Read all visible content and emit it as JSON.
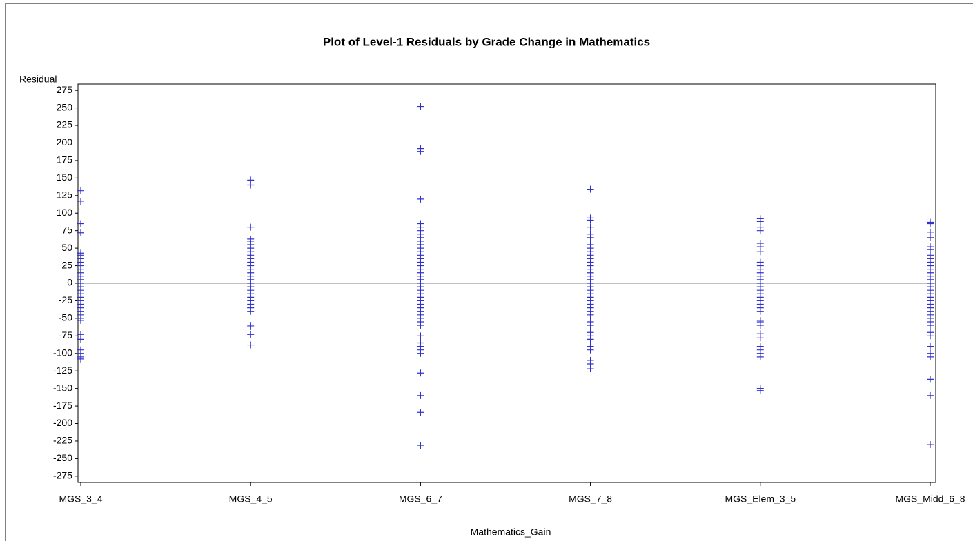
{
  "chart_data": {
    "type": "scatter",
    "title": "Plot of Level-1 Residuals by Grade Change in Mathematics",
    "y_label": "Residual",
    "x_label": "Mathematics_Gain",
    "color": "#3333cc",
    "refline": 0,
    "ylim": [
      -284,
      284
    ],
    "yticks": [
      -275,
      -250,
      -225,
      -200,
      -175,
      -150,
      -125,
      -100,
      -75,
      -50,
      -25,
      0,
      25,
      50,
      75,
      100,
      125,
      150,
      175,
      200,
      225,
      250,
      275
    ],
    "categories": [
      "MGS_3_4",
      "MGS_4_5",
      "MGS_6_7",
      "MGS_7_8",
      "MGS_Elem_3_5",
      "MGS_Midd_6_8"
    ],
    "values": [
      [
        132,
        117,
        85,
        72,
        43,
        40,
        35,
        30,
        25,
        20,
        15,
        10,
        5,
        0,
        -5,
        -10,
        -15,
        -20,
        -25,
        -30,
        -35,
        -40,
        -45,
        -50,
        -53,
        -73,
        -80,
        -95,
        -100,
        -105,
        -108
      ],
      [
        147,
        140,
        80,
        63,
        60,
        55,
        50,
        45,
        40,
        35,
        30,
        25,
        20,
        15,
        10,
        5,
        0,
        -5,
        -10,
        -15,
        -20,
        -25,
        -30,
        -35,
        -40,
        -60,
        -62,
        -73,
        -88
      ],
      [
        252,
        192,
        188,
        120,
        85,
        80,
        75,
        70,
        65,
        60,
        55,
        50,
        45,
        40,
        35,
        30,
        25,
        20,
        15,
        10,
        5,
        0,
        -5,
        -10,
        -15,
        -20,
        -25,
        -30,
        -35,
        -40,
        -45,
        -50,
        -55,
        -60,
        -75,
        -85,
        -90,
        -95,
        -100,
        -128,
        -160,
        -184,
        -231
      ],
      [
        134,
        93,
        90,
        80,
        70,
        65,
        55,
        50,
        45,
        40,
        35,
        30,
        25,
        20,
        15,
        10,
        5,
        0,
        -5,
        -10,
        -15,
        -20,
        -25,
        -30,
        -35,
        -40,
        -45,
        -55,
        -60,
        -70,
        -75,
        -80,
        -90,
        -95,
        -110,
        -115,
        -122
      ],
      [
        92,
        88,
        80,
        75,
        57,
        52,
        45,
        30,
        25,
        20,
        15,
        10,
        5,
        0,
        -5,
        -10,
        -15,
        -20,
        -25,
        -30,
        -35,
        -40,
        -53,
        -55,
        -60,
        -72,
        -78,
        -90,
        -95,
        -100,
        -105,
        -150,
        -153
      ],
      [
        87,
        85,
        73,
        65,
        52,
        48,
        40,
        35,
        30,
        25,
        20,
        15,
        10,
        5,
        0,
        -5,
        -10,
        -15,
        -20,
        -25,
        -30,
        -35,
        -40,
        -45,
        -50,
        -55,
        -60,
        -70,
        -75,
        -90,
        -100,
        -105,
        -137,
        -160,
        -230
      ]
    ]
  }
}
